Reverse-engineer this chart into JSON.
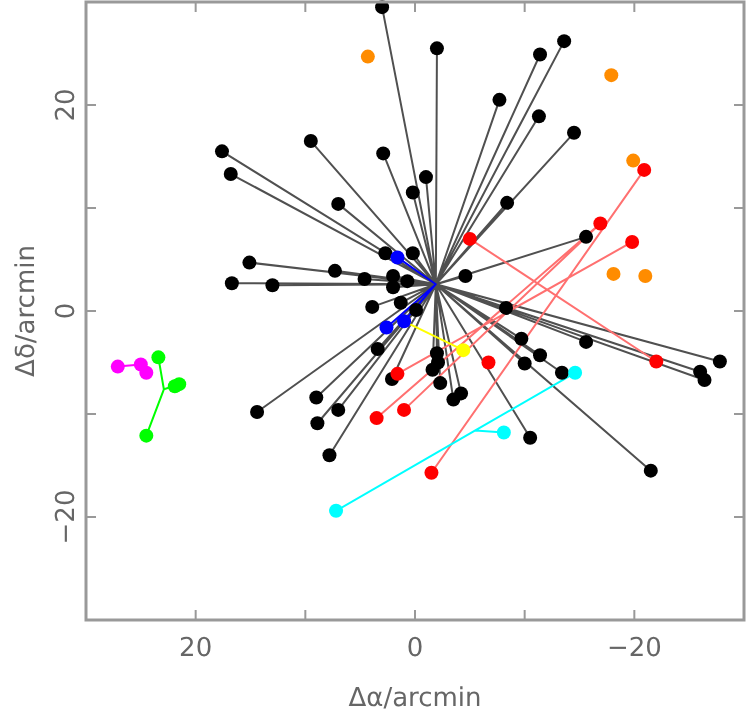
{
  "chart_data": {
    "type": "scatter",
    "xlabel": "Δα/arcmin",
    "ylabel": "Δδ/arcmin",
    "xlim": [
      30,
      -30
    ],
    "ylim": [
      -30,
      30
    ],
    "xticks": [
      20,
      {
        "value": 10,
        "label": null
      },
      0,
      {
        "value": -10,
        "label": null
      },
      {
        "value": -20,
        "label": "−20"
      }
    ],
    "yticks": [
      {
        "value": -20,
        "label": "−20"
      },
      {
        "value": -10,
        "label": null
      },
      0,
      {
        "value": 10,
        "label": null
      },
      20
    ],
    "grid": false,
    "marker": "circle",
    "series": [
      {
        "type": "line",
        "marker": "none",
        "color": "#505050",
        "x": [
          -1.9,
          3.0,
          -1.9,
          17.6,
          -1.9,
          16.8,
          -1.9,
          9.5,
          -1.9,
          2.9,
          -1.9,
          7.0,
          -1.9,
          0.2,
          -1.9,
          -1.0,
          -1.9,
          2.7,
          -1.9,
          0.2,
          -1.9,
          15.1,
          -1.9,
          7.3,
          -1.9,
          16.7,
          -1.9,
          13.0,
          -1.9,
          4.6,
          -1.9,
          2.0,
          -1.9,
          2.0,
          -1.9,
          0.7,
          -1.9,
          3.9,
          -1.9,
          1.3,
          -1.9,
          -0.1,
          -1.9,
          -2.0,
          -1.9,
          -11.4,
          -1.9,
          -13.6,
          -1.9,
          -7.7,
          -1.9,
          -11.3,
          -1.9,
          -14.5,
          -1.9,
          -8.4,
          -1.9,
          -15.6,
          -1.9,
          -4.6,
          -1.9,
          -8.3,
          -1.9,
          -27.8,
          -1.9,
          -26.0,
          -1.9,
          -26.4,
          -1.9,
          -15.6,
          -1.9,
          -9.7,
          -1.9,
          -11.4,
          -1.9,
          -10.0,
          -1.9,
          -13.4,
          -1.9,
          -2.0,
          -1.9,
          -2.1,
          -1.9,
          -1.6,
          -1.9,
          -2.3,
          -1.9,
          -3.5,
          -1.9,
          -4.2,
          -1.9,
          -10.5,
          -1.9,
          -21.5,
          -1.9,
          3.4,
          -1.9,
          2.1,
          -1.9,
          14.4,
          -1.9,
          9.0,
          -1.9,
          8.9,
          -1.9,
          7.0,
          -1.9,
          7.8
        ],
        "values": [
          2.6,
          29.5,
          2.6,
          15.5,
          2.6,
          13.3,
          2.6,
          16.5,
          2.6,
          15.3,
          2.6,
          10.4,
          2.6,
          11.5,
          2.6,
          13.0,
          2.6,
          5.6,
          2.6,
          5.6,
          2.6,
          4.7,
          2.6,
          3.9,
          2.6,
          2.7,
          2.6,
          2.5,
          2.6,
          3.1,
          2.6,
          3.4,
          2.6,
          2.3,
          2.6,
          2.9,
          2.6,
          0.4,
          2.6,
          0.8,
          2.6,
          0.1,
          2.6,
          25.5,
          2.6,
          24.9,
          2.6,
          26.2,
          2.6,
          20.5,
          2.6,
          18.9,
          2.6,
          17.3,
          2.6,
          10.5,
          2.6,
          7.2,
          2.6,
          3.4,
          2.6,
          0.3,
          2.6,
          -4.9,
          2.6,
          -5.9,
          2.6,
          -6.7,
          2.6,
          -3.0,
          2.6,
          -2.7,
          2.6,
          -4.3,
          2.6,
          -5.1,
          2.6,
          -6.0,
          2.6,
          -4.1,
          2.6,
          -5.0,
          2.6,
          -5.7,
          2.6,
          -7.0,
          2.6,
          -8.6,
          2.6,
          -8.0,
          2.6,
          -12.3,
          2.6,
          -15.5,
          2.6,
          -3.7,
          2.6,
          -6.6,
          2.6,
          -9.8,
          2.6,
          -8.4,
          2.6,
          -10.9,
          2.6,
          -9.6,
          2.6,
          -14.0
        ]
      },
      {
        "type": "line",
        "marker": "none",
        "color": "#ff7070",
        "x": [
          -1.5,
          -20.9,
          null,
          1.6,
          -19.8,
          null,
          1.0,
          -16.9,
          null,
          3.5,
          -16.9,
          null,
          -5.0,
          -22.0
        ],
        "values": [
          -15.7,
          13.7,
          null,
          -6.1,
          6.7,
          null,
          -9.6,
          8.5,
          null,
          -10.4,
          8.5,
          null,
          7.0,
          -4.9
        ]
      },
      {
        "type": "line",
        "marker": "none",
        "color": "#0000ff",
        "x": [
          1.6,
          -1.9,
          2.6,
          null,
          1.0,
          -1.9
        ],
        "values": [
          5.2,
          2.6,
          -1.6,
          null,
          -1.0,
          2.6
        ]
      },
      {
        "type": "line",
        "marker": "none",
        "color": "#ffff00",
        "x": [
          1.0,
          -4.4
        ],
        "values": [
          -1.0,
          -3.8
        ]
      },
      {
        "type": "line",
        "marker": "none",
        "color": "#00ffff",
        "x": [
          7.2,
          -5.5,
          -14.6,
          null,
          -5.5,
          -8.1
        ],
        "values": [
          -19.4,
          -11.6,
          -6.0,
          null,
          -11.6,
          -11.8
        ]
      },
      {
        "type": "line",
        "marker": "none",
        "color": "#ff00ff",
        "x": [
          27.1,
          25.0,
          24.5
        ],
        "values": [
          -5.4,
          -5.2,
          -6.0
        ]
      },
      {
        "type": "line",
        "marker": "none",
        "color": "#00ff00",
        "x": [
          23.4,
          22.9,
          24.5,
          null,
          22.9,
          21.7
        ],
        "values": [
          -4.5,
          -7.6,
          -12.1,
          null,
          -7.6,
          -7.2
        ]
      },
      {
        "color": "#000000",
        "x": [
          3.0,
          17.6,
          16.8,
          9.5,
          2.9,
          7.0,
          0.2,
          -1.0,
          2.7,
          0.2,
          15.1,
          7.3,
          16.7,
          13.0,
          4.6,
          2.0,
          2.0,
          0.7,
          3.9,
          1.3,
          -0.1,
          -2.0,
          -11.4,
          -13.6,
          -7.7,
          -11.3,
          -14.5,
          -8.4,
          -15.6,
          -4.6,
          -8.3,
          -27.8,
          -26.0,
          -26.4,
          -15.6,
          -9.7,
          -11.4,
          -10.0,
          -13.4,
          -2.0,
          -2.1,
          -1.6,
          -2.3,
          -3.5,
          -4.2,
          -10.5,
          -21.5,
          3.4,
          2.1,
          14.4,
          9.0,
          8.9,
          7.0,
          7.8
        ],
        "values": [
          29.5,
          15.5,
          13.3,
          16.5,
          15.3,
          10.4,
          11.5,
          13.0,
          5.6,
          5.6,
          4.7,
          3.9,
          2.7,
          2.5,
          3.1,
          3.4,
          2.3,
          2.9,
          0.4,
          0.8,
          0.1,
          25.5,
          24.9,
          26.2,
          20.5,
          18.9,
          17.3,
          10.5,
          7.2,
          3.4,
          0.3,
          -4.9,
          -5.9,
          -6.7,
          -3.0,
          -2.7,
          -4.3,
          -5.1,
          -6.0,
          -4.1,
          -5.0,
          -5.7,
          -7.0,
          -8.6,
          -8.0,
          -12.3,
          -15.5,
          -3.7,
          -6.6,
          -9.8,
          -8.4,
          -10.9,
          -9.6,
          -14.0
        ]
      },
      {
        "type": "scatter",
        "color": "#ff0000",
        "x": [
          -5.0,
          -16.9,
          -20.9,
          -19.8,
          -22.0,
          -6.7,
          -1.5,
          3.5,
          1.0,
          1.6
        ],
        "values": [
          7.0,
          8.5,
          13.7,
          6.7,
          -4.9,
          -5.0,
          -15.7,
          -10.4,
          -9.6,
          -6.1
        ]
      },
      {
        "type": "scatter",
        "color": "#ff8c00",
        "x": [
          4.3,
          -17.9,
          -19.9,
          -18.1,
          -21.0
        ],
        "values": [
          24.7,
          22.9,
          14.6,
          3.6,
          3.4
        ]
      },
      {
        "type": "scatter",
        "color": "#0000ff",
        "x": [
          1.6,
          2.6,
          1.0
        ],
        "values": [
          5.2,
          -1.6,
          -1.0
        ]
      },
      {
        "type": "scatter",
        "color": "#ffff00",
        "x": [
          -4.4
        ],
        "values": [
          -3.8
        ]
      },
      {
        "type": "scatter",
        "color": "#00ffff",
        "x": [
          7.2,
          -8.1,
          -14.6
        ],
        "values": [
          -19.4,
          -11.8,
          -6.0
        ]
      },
      {
        "type": "scatter",
        "color": "#ff00ff",
        "x": [
          27.1,
          25.0,
          24.5
        ],
        "values": [
          -5.4,
          -5.2,
          -6.0
        ]
      },
      {
        "type": "scatter",
        "color": "#00ff00",
        "x": [
          23.4,
          21.9,
          21.5,
          24.5
        ],
        "values": [
          -4.5,
          -7.3,
          -7.1,
          -12.1
        ]
      }
    ]
  }
}
